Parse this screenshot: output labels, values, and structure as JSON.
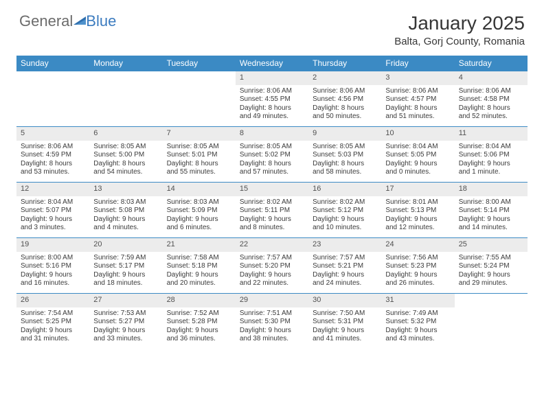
{
  "brand": {
    "part1": "General",
    "part2": "Blue",
    "icon_color": "#2f6fae"
  },
  "title": {
    "month": "January 2025",
    "location": "Balta, Gorj County, Romania"
  },
  "colors": {
    "header_bg": "#3b8ac4",
    "header_text": "#ffffff",
    "daynum_bg": "#ececec",
    "border": "#3b8ac4",
    "text": "#3a3a3a"
  },
  "day_labels": [
    "Sunday",
    "Monday",
    "Tuesday",
    "Wednesday",
    "Thursday",
    "Friday",
    "Saturday"
  ],
  "weeks": [
    [
      {
        "day": "",
        "sunrise": "",
        "sunset": "",
        "daylight1": "",
        "daylight2": ""
      },
      {
        "day": "",
        "sunrise": "",
        "sunset": "",
        "daylight1": "",
        "daylight2": ""
      },
      {
        "day": "",
        "sunrise": "",
        "sunset": "",
        "daylight1": "",
        "daylight2": ""
      },
      {
        "day": "1",
        "sunrise": "Sunrise: 8:06 AM",
        "sunset": "Sunset: 4:55 PM",
        "daylight1": "Daylight: 8 hours",
        "daylight2": "and 49 minutes."
      },
      {
        "day": "2",
        "sunrise": "Sunrise: 8:06 AM",
        "sunset": "Sunset: 4:56 PM",
        "daylight1": "Daylight: 8 hours",
        "daylight2": "and 50 minutes."
      },
      {
        "day": "3",
        "sunrise": "Sunrise: 8:06 AM",
        "sunset": "Sunset: 4:57 PM",
        "daylight1": "Daylight: 8 hours",
        "daylight2": "and 51 minutes."
      },
      {
        "day": "4",
        "sunrise": "Sunrise: 8:06 AM",
        "sunset": "Sunset: 4:58 PM",
        "daylight1": "Daylight: 8 hours",
        "daylight2": "and 52 minutes."
      }
    ],
    [
      {
        "day": "5",
        "sunrise": "Sunrise: 8:06 AM",
        "sunset": "Sunset: 4:59 PM",
        "daylight1": "Daylight: 8 hours",
        "daylight2": "and 53 minutes."
      },
      {
        "day": "6",
        "sunrise": "Sunrise: 8:05 AM",
        "sunset": "Sunset: 5:00 PM",
        "daylight1": "Daylight: 8 hours",
        "daylight2": "and 54 minutes."
      },
      {
        "day": "7",
        "sunrise": "Sunrise: 8:05 AM",
        "sunset": "Sunset: 5:01 PM",
        "daylight1": "Daylight: 8 hours",
        "daylight2": "and 55 minutes."
      },
      {
        "day": "8",
        "sunrise": "Sunrise: 8:05 AM",
        "sunset": "Sunset: 5:02 PM",
        "daylight1": "Daylight: 8 hours",
        "daylight2": "and 57 minutes."
      },
      {
        "day": "9",
        "sunrise": "Sunrise: 8:05 AM",
        "sunset": "Sunset: 5:03 PM",
        "daylight1": "Daylight: 8 hours",
        "daylight2": "and 58 minutes."
      },
      {
        "day": "10",
        "sunrise": "Sunrise: 8:04 AM",
        "sunset": "Sunset: 5:05 PM",
        "daylight1": "Daylight: 9 hours",
        "daylight2": "and 0 minutes."
      },
      {
        "day": "11",
        "sunrise": "Sunrise: 8:04 AM",
        "sunset": "Sunset: 5:06 PM",
        "daylight1": "Daylight: 9 hours",
        "daylight2": "and 1 minute."
      }
    ],
    [
      {
        "day": "12",
        "sunrise": "Sunrise: 8:04 AM",
        "sunset": "Sunset: 5:07 PM",
        "daylight1": "Daylight: 9 hours",
        "daylight2": "and 3 minutes."
      },
      {
        "day": "13",
        "sunrise": "Sunrise: 8:03 AM",
        "sunset": "Sunset: 5:08 PM",
        "daylight1": "Daylight: 9 hours",
        "daylight2": "and 4 minutes."
      },
      {
        "day": "14",
        "sunrise": "Sunrise: 8:03 AM",
        "sunset": "Sunset: 5:09 PM",
        "daylight1": "Daylight: 9 hours",
        "daylight2": "and 6 minutes."
      },
      {
        "day": "15",
        "sunrise": "Sunrise: 8:02 AM",
        "sunset": "Sunset: 5:11 PM",
        "daylight1": "Daylight: 9 hours",
        "daylight2": "and 8 minutes."
      },
      {
        "day": "16",
        "sunrise": "Sunrise: 8:02 AM",
        "sunset": "Sunset: 5:12 PM",
        "daylight1": "Daylight: 9 hours",
        "daylight2": "and 10 minutes."
      },
      {
        "day": "17",
        "sunrise": "Sunrise: 8:01 AM",
        "sunset": "Sunset: 5:13 PM",
        "daylight1": "Daylight: 9 hours",
        "daylight2": "and 12 minutes."
      },
      {
        "day": "18",
        "sunrise": "Sunrise: 8:00 AM",
        "sunset": "Sunset: 5:14 PM",
        "daylight1": "Daylight: 9 hours",
        "daylight2": "and 14 minutes."
      }
    ],
    [
      {
        "day": "19",
        "sunrise": "Sunrise: 8:00 AM",
        "sunset": "Sunset: 5:16 PM",
        "daylight1": "Daylight: 9 hours",
        "daylight2": "and 16 minutes."
      },
      {
        "day": "20",
        "sunrise": "Sunrise: 7:59 AM",
        "sunset": "Sunset: 5:17 PM",
        "daylight1": "Daylight: 9 hours",
        "daylight2": "and 18 minutes."
      },
      {
        "day": "21",
        "sunrise": "Sunrise: 7:58 AM",
        "sunset": "Sunset: 5:18 PM",
        "daylight1": "Daylight: 9 hours",
        "daylight2": "and 20 minutes."
      },
      {
        "day": "22",
        "sunrise": "Sunrise: 7:57 AM",
        "sunset": "Sunset: 5:20 PM",
        "daylight1": "Daylight: 9 hours",
        "daylight2": "and 22 minutes."
      },
      {
        "day": "23",
        "sunrise": "Sunrise: 7:57 AM",
        "sunset": "Sunset: 5:21 PM",
        "daylight1": "Daylight: 9 hours",
        "daylight2": "and 24 minutes."
      },
      {
        "day": "24",
        "sunrise": "Sunrise: 7:56 AM",
        "sunset": "Sunset: 5:23 PM",
        "daylight1": "Daylight: 9 hours",
        "daylight2": "and 26 minutes."
      },
      {
        "day": "25",
        "sunrise": "Sunrise: 7:55 AM",
        "sunset": "Sunset: 5:24 PM",
        "daylight1": "Daylight: 9 hours",
        "daylight2": "and 29 minutes."
      }
    ],
    [
      {
        "day": "26",
        "sunrise": "Sunrise: 7:54 AM",
        "sunset": "Sunset: 5:25 PM",
        "daylight1": "Daylight: 9 hours",
        "daylight2": "and 31 minutes."
      },
      {
        "day": "27",
        "sunrise": "Sunrise: 7:53 AM",
        "sunset": "Sunset: 5:27 PM",
        "daylight1": "Daylight: 9 hours",
        "daylight2": "and 33 minutes."
      },
      {
        "day": "28",
        "sunrise": "Sunrise: 7:52 AM",
        "sunset": "Sunset: 5:28 PM",
        "daylight1": "Daylight: 9 hours",
        "daylight2": "and 36 minutes."
      },
      {
        "day": "29",
        "sunrise": "Sunrise: 7:51 AM",
        "sunset": "Sunset: 5:30 PM",
        "daylight1": "Daylight: 9 hours",
        "daylight2": "and 38 minutes."
      },
      {
        "day": "30",
        "sunrise": "Sunrise: 7:50 AM",
        "sunset": "Sunset: 5:31 PM",
        "daylight1": "Daylight: 9 hours",
        "daylight2": "and 41 minutes."
      },
      {
        "day": "31",
        "sunrise": "Sunrise: 7:49 AM",
        "sunset": "Sunset: 5:32 PM",
        "daylight1": "Daylight: 9 hours",
        "daylight2": "and 43 minutes."
      },
      {
        "day": "",
        "sunrise": "",
        "sunset": "",
        "daylight1": "",
        "daylight2": ""
      }
    ]
  ]
}
